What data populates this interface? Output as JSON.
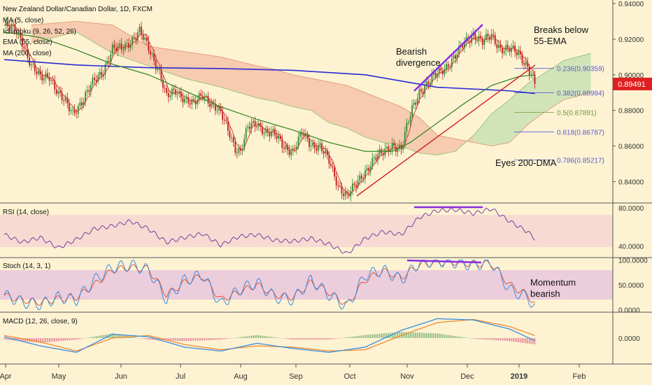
{
  "chart_data": {
    "type": "line",
    "title": "New Zealand Dollar/Canadian Dollar, 1D, FXCM",
    "main_indicators": [
      "MA (5, close)",
      "Ichimoku (9, 26, 52, 26)",
      "EMA (55, close)",
      "MA (200, close)"
    ],
    "x_ticks": [
      "Apr",
      "May",
      "Jun",
      "Jul",
      "Aug",
      "Sep",
      "Oct",
      "Nov",
      "Dec",
      "2019",
      "Feb"
    ],
    "price_axis": {
      "ticks": [
        "0.94000",
        "0.92000",
        "0.90000",
        "0.88000",
        "0.86000",
        "0.84000"
      ],
      "ylim": [
        0.828,
        0.942
      ],
      "current_price": "0.89491"
    },
    "price_series": {
      "name": "NZD/CAD",
      "x": [
        0,
        6,
        10,
        15,
        20,
        25,
        30,
        38,
        44,
        50,
        55,
        60,
        65,
        70,
        75,
        80,
        86,
        90,
        95,
        100,
        105,
        110,
        115,
        120,
        125,
        128,
        131,
        135,
        140,
        145,
        150,
        155,
        160,
        165,
        170,
        175,
        180,
        185,
        190,
        195,
        200,
        205,
        210,
        215,
        220,
        223,
        226,
        230,
        235,
        240,
        245,
        250,
        255,
        260,
        265,
        270,
        275,
        280,
        285,
        290,
        294
      ],
      "y": [
        0.9275,
        0.9255,
        0.919,
        0.905,
        0.898,
        0.9,
        0.889,
        0.879,
        0.886,
        0.897,
        0.903,
        0.914,
        0.915,
        0.919,
        0.924,
        0.915,
        0.902,
        0.887,
        0.891,
        0.887,
        0.883,
        0.889,
        0.884,
        0.878,
        0.867,
        0.859,
        0.857,
        0.87,
        0.873,
        0.868,
        0.866,
        0.86,
        0.857,
        0.867,
        0.861,
        0.86,
        0.851,
        0.838,
        0.832,
        0.838,
        0.846,
        0.853,
        0.856,
        0.861,
        0.858,
        0.87,
        0.881,
        0.891,
        0.895,
        0.901,
        0.905,
        0.91,
        0.918,
        0.923,
        0.918,
        0.922,
        0.915,
        0.914,
        0.912,
        0.905,
        0.8949
      ]
    },
    "ema55": {
      "x": [
        0,
        20,
        40,
        60,
        80,
        100,
        120,
        140,
        160,
        180,
        200,
        215,
        225,
        240,
        255,
        270,
        285,
        294
      ],
      "y": [
        0.924,
        0.921,
        0.914,
        0.906,
        0.9,
        0.891,
        0.882,
        0.875,
        0.869,
        0.862,
        0.857,
        0.857,
        0.862,
        0.873,
        0.884,
        0.894,
        0.899,
        0.9
      ]
    },
    "ma200": {
      "x": [
        0,
        40,
        80,
        120,
        160,
        200,
        240,
        280,
        294
      ],
      "y": [
        0.9085,
        0.9055,
        0.904,
        0.9035,
        0.9025,
        0.9,
        0.893,
        0.891,
        0.8895
      ]
    },
    "ichimoku_cloud": {
      "x": [
        15,
        40,
        60,
        80,
        100,
        120,
        140,
        150,
        160,
        170,
        180,
        190,
        200,
        210,
        220,
        230,
        240,
        250,
        260,
        270,
        280,
        290,
        298,
        310,
        325
      ],
      "span_a": [
        0.918,
        0.924,
        0.912,
        0.905,
        0.898,
        0.893,
        0.887,
        0.885,
        0.882,
        0.88,
        0.873,
        0.87,
        0.865,
        0.862,
        0.86,
        0.856,
        0.855,
        0.857,
        0.866,
        0.878,
        0.886,
        0.895,
        0.9,
        0.908,
        0.912
      ],
      "span_b": [
        0.928,
        0.93,
        0.928,
        0.916,
        0.913,
        0.91,
        0.905,
        0.903,
        0.9,
        0.898,
        0.896,
        0.894,
        0.89,
        0.886,
        0.882,
        0.876,
        0.866,
        0.864,
        0.862,
        0.86,
        0.862,
        0.872,
        0.878,
        0.886,
        0.89
      ]
    },
    "fibonacci": [
      {
        "label": "0.236(0.90359)",
        "value": 0.90359
      },
      {
        "label": "0.382(0.88994)",
        "value": 0.88994
      },
      {
        "label": "0.5(0.87891)",
        "value": 0.87891
      },
      {
        "label": "0.618(0.86787)",
        "value": 0.86787
      },
      {
        "label": "0.786(0.85217)",
        "value": 0.85217
      }
    ],
    "annotations": [
      "Bearish divergence",
      "Breaks below 55-EMA",
      "Eyes 200-DMA",
      "Momentum bearish"
    ],
    "rsi": {
      "label": "RSI (14, close)",
      "ticks": [
        "80.0000",
        "40.0000"
      ],
      "ylim": [
        28,
        85
      ],
      "x": [
        0,
        10,
        20,
        30,
        40,
        50,
        60,
        70,
        80,
        90,
        100,
        110,
        120,
        130,
        140,
        150,
        160,
        170,
        180,
        190,
        200,
        210,
        220,
        230,
        240,
        250,
        260,
        270,
        280,
        290,
        294
      ],
      "values": [
        52,
        44,
        49,
        38,
        47,
        58,
        61,
        66,
        58,
        44,
        49,
        53,
        41,
        50,
        52,
        46,
        45,
        48,
        42,
        32,
        48,
        55,
        52,
        70,
        77,
        78,
        74,
        79,
        66,
        55,
        48
      ]
    },
    "stoch": {
      "label": "Stoch (14, 3, 1)",
      "ticks": [
        "100.0000",
        "50.0000",
        "0.0000"
      ],
      "ylim": [
        -5,
        105
      ],
      "x": [
        0,
        10,
        20,
        30,
        40,
        50,
        60,
        70,
        80,
        90,
        100,
        110,
        120,
        130,
        140,
        150,
        160,
        170,
        180,
        190,
        200,
        210,
        220,
        230,
        240,
        250,
        260,
        270,
        280,
        290,
        294
      ],
      "k_values": [
        30,
        15,
        10,
        25,
        20,
        60,
        85,
        90,
        80,
        20,
        60,
        70,
        10,
        40,
        55,
        25,
        20,
        60,
        30,
        5,
        70,
        80,
        60,
        95,
        98,
        95,
        90,
        95,
        40,
        25,
        5
      ],
      "d_values": [
        28,
        20,
        15,
        22,
        25,
        50,
        80,
        85,
        82,
        30,
        55,
        68,
        20,
        35,
        50,
        30,
        25,
        55,
        35,
        10,
        60,
        78,
        65,
        90,
        95,
        96,
        92,
        93,
        50,
        30,
        12
      ]
    },
    "macd": {
      "label": "MACD (12, 26, close, 9)",
      "ticks": [
        "0.0000"
      ],
      "ylim": [
        -1,
        1
      ],
      "x": [
        0,
        20,
        40,
        60,
        80,
        100,
        120,
        140,
        160,
        180,
        200,
        220,
        240,
        260,
        280,
        294
      ],
      "macd": [
        0.05,
        -0.3,
        -0.55,
        0.15,
        0.05,
        -0.35,
        -0.5,
        -0.2,
        -0.4,
        -0.55,
        -0.35,
        0.3,
        0.75,
        0.7,
        0.35,
        -0.1
      ],
      "signal": [
        0.1,
        -0.15,
        -0.5,
        0.0,
        0.1,
        -0.25,
        -0.45,
        -0.3,
        -0.35,
        -0.5,
        -0.45,
        0.1,
        0.6,
        0.72,
        0.45,
        0.1
      ]
    }
  }
}
